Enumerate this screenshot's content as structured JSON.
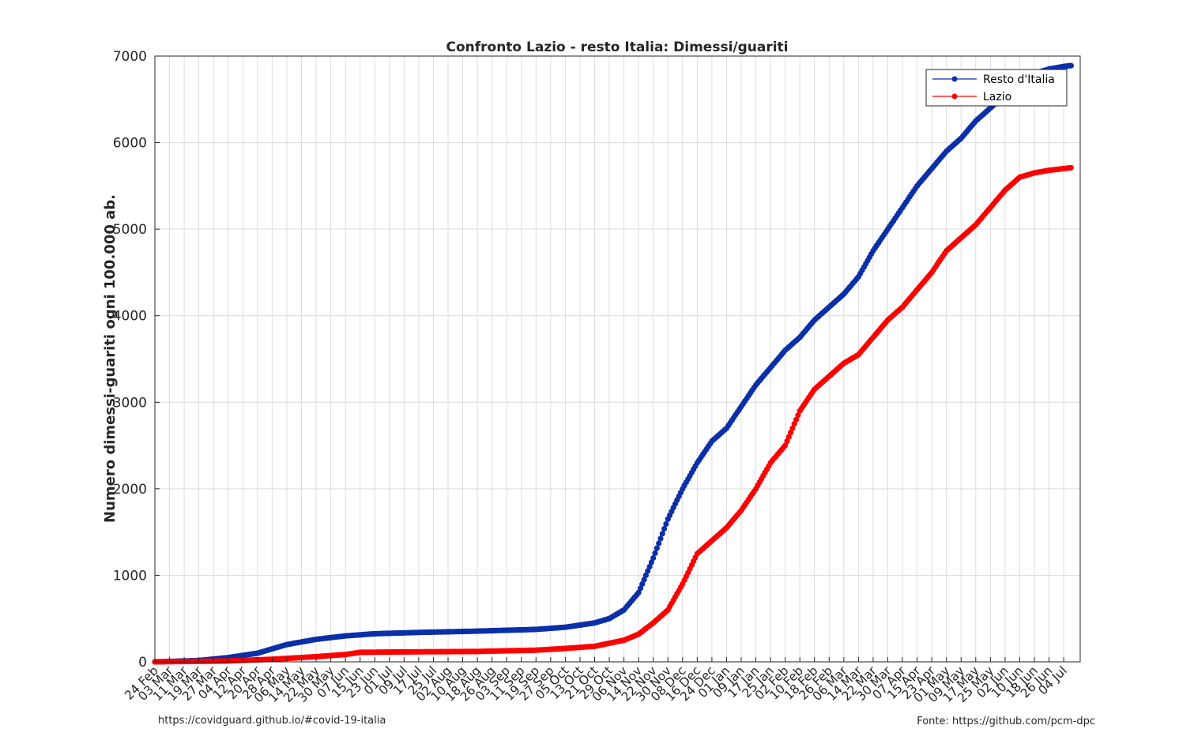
{
  "page": {
    "footer_left": "https://covidguard.github.io/#covid-19-italia",
    "footer_right": "Fonte: https://github.com/pcm-dpc"
  },
  "chart_data": {
    "type": "line",
    "title": "Confronto Lazio - resto Italia: Dimessi/guariti",
    "xlabel": "",
    "ylabel": "Numero dimessi-guariti ogni 100.000 ab.",
    "ylim": [
      0,
      7000
    ],
    "yticks": [
      0,
      1000,
      2000,
      3000,
      4000,
      5000,
      6000,
      7000
    ],
    "grid": true,
    "legend_position": "top-right",
    "x_tick_labels": [
      "24 Feb",
      "03 Mar",
      "11 Mar",
      "19 Mar",
      "27 Mar",
      "04 Apr",
      "12 Apr",
      "20 Apr",
      "28 Apr",
      "06 May",
      "14 May",
      "22 May",
      "30 May",
      "07 Jun",
      "15 Jun",
      "23 Jun",
      "01 Jul",
      "09 Jul",
      "17 Jul",
      "25 Jul",
      "02 Aug",
      "10 Aug",
      "18 Aug",
      "26 Aug",
      "03 Sep",
      "11 Sep",
      "19 Sep",
      "27 Sep",
      "05 Oct",
      "13 Oct",
      "21 Oct",
      "29 Oct",
      "06 Nov",
      "14 Nov",
      "22 Nov",
      "30 Nov",
      "08 Dec",
      "16 Dec",
      "24 Dec",
      "01 Jan",
      "09 Jan",
      "17 Jan",
      "25 Jan",
      "02 Feb",
      "10 Feb",
      "18 Feb",
      "26 Feb",
      "06 Mar",
      "14 Mar",
      "22 Mar",
      "30 Mar",
      "07 Apr",
      "15 Apr",
      "23 Apr",
      "01 May",
      "09 May",
      "17 May",
      "25 May",
      "02 Jun",
      "10 Jun",
      "18 Jun",
      "26 Jun",
      "04 Jul"
    ],
    "x_first_date": "2020-02-24",
    "tick_step_days": 8,
    "series": [
      {
        "name": "Resto d'Italia",
        "color": "#0a2fa8",
        "points": [
          [
            "2020-02-24",
            0
          ],
          [
            "2020-03-19",
            15
          ],
          [
            "2020-04-04",
            50
          ],
          [
            "2020-04-20",
            100
          ],
          [
            "2020-05-06",
            200
          ],
          [
            "2020-05-22",
            260
          ],
          [
            "2020-06-07",
            300
          ],
          [
            "2020-06-23",
            325
          ],
          [
            "2020-07-17",
            340
          ],
          [
            "2020-08-18",
            355
          ],
          [
            "2020-09-19",
            375
          ],
          [
            "2020-10-05",
            400
          ],
          [
            "2020-10-21",
            450
          ],
          [
            "2020-10-29",
            500
          ],
          [
            "2020-11-06",
            600
          ],
          [
            "2020-11-14",
            800
          ],
          [
            "2020-11-22",
            1200
          ],
          [
            "2020-11-30",
            1650
          ],
          [
            "2020-12-08",
            2000
          ],
          [
            "2020-12-16",
            2300
          ],
          [
            "2020-12-24",
            2550
          ],
          [
            "2021-01-01",
            2700
          ],
          [
            "2021-01-09",
            2950
          ],
          [
            "2021-01-17",
            3200
          ],
          [
            "2021-01-25",
            3400
          ],
          [
            "2021-02-02",
            3600
          ],
          [
            "2021-02-10",
            3750
          ],
          [
            "2021-02-18",
            3950
          ],
          [
            "2021-02-26",
            4100
          ],
          [
            "2021-03-06",
            4250
          ],
          [
            "2021-03-14",
            4450
          ],
          [
            "2021-03-22",
            4750
          ],
          [
            "2021-03-30",
            5000
          ],
          [
            "2021-04-07",
            5250
          ],
          [
            "2021-04-15",
            5500
          ],
          [
            "2021-04-23",
            5700
          ],
          [
            "2021-05-01",
            5900
          ],
          [
            "2021-05-09",
            6050
          ],
          [
            "2021-05-17",
            6250
          ],
          [
            "2021-05-25",
            6400
          ],
          [
            "2021-06-02",
            6550
          ],
          [
            "2021-06-10",
            6700
          ],
          [
            "2021-06-18",
            6800
          ],
          [
            "2021-06-26",
            6850
          ],
          [
            "2021-07-04",
            6880
          ],
          [
            "2021-07-08",
            6890
          ]
        ]
      },
      {
        "name": "Lazio",
        "color": "#ff0000",
        "points": [
          [
            "2020-02-24",
            0
          ],
          [
            "2020-04-04",
            10
          ],
          [
            "2020-04-28",
            30
          ],
          [
            "2020-05-22",
            60
          ],
          [
            "2020-06-07",
            85
          ],
          [
            "2020-06-15",
            110
          ],
          [
            "2020-07-09",
            115
          ],
          [
            "2020-08-18",
            120
          ],
          [
            "2020-09-19",
            135
          ],
          [
            "2020-10-05",
            155
          ],
          [
            "2020-10-21",
            180
          ],
          [
            "2020-11-06",
            250
          ],
          [
            "2020-11-14",
            320
          ],
          [
            "2020-11-22",
            450
          ],
          [
            "2020-11-30",
            600
          ],
          [
            "2020-12-08",
            900
          ],
          [
            "2020-12-16",
            1250
          ],
          [
            "2020-12-24",
            1400
          ],
          [
            "2021-01-01",
            1550
          ],
          [
            "2021-01-09",
            1750
          ],
          [
            "2021-01-17",
            2000
          ],
          [
            "2021-01-25",
            2300
          ],
          [
            "2021-02-02",
            2500
          ],
          [
            "2021-02-10",
            2900
          ],
          [
            "2021-02-18",
            3150
          ],
          [
            "2021-02-26",
            3300
          ],
          [
            "2021-03-06",
            3450
          ],
          [
            "2021-03-14",
            3550
          ],
          [
            "2021-03-22",
            3750
          ],
          [
            "2021-03-30",
            3950
          ],
          [
            "2021-04-07",
            4100
          ],
          [
            "2021-04-15",
            4300
          ],
          [
            "2021-04-23",
            4500
          ],
          [
            "2021-05-01",
            4750
          ],
          [
            "2021-05-09",
            4900
          ],
          [
            "2021-05-17",
            5050
          ],
          [
            "2021-05-25",
            5250
          ],
          [
            "2021-06-02",
            5450
          ],
          [
            "2021-06-10",
            5600
          ],
          [
            "2021-06-18",
            5650
          ],
          [
            "2021-06-26",
            5680
          ],
          [
            "2021-07-04",
            5700
          ],
          [
            "2021-07-08",
            5710
          ]
        ]
      }
    ]
  }
}
